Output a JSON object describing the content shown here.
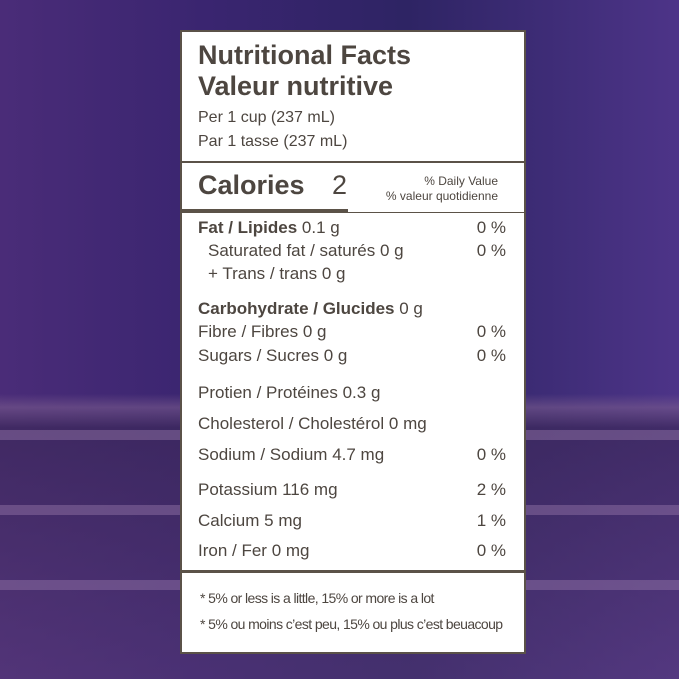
{
  "header": {
    "title": "Nutritional Facts",
    "subtitle": "Valeur nutritive",
    "serving_en": "Per 1 cup (237 mL)",
    "serving_fr": "Par 1 tasse (237 mL)"
  },
  "calories": {
    "label": "Calories",
    "value": "2",
    "daily_value_en": "% Daily Value",
    "daily_value_fr": "% valeur quotidienne"
  },
  "nutrients": [
    {
      "name": "Fat / Lipides",
      "amount": "0.1 g",
      "percent": "0 %"
    },
    {
      "name": "Saturated fat / saturés",
      "amount": "0 g",
      "percent": "0 %"
    },
    {
      "name": "+ Trans / trans",
      "amount": "0 g"
    },
    {
      "name": "Carbohydrate / Glucides",
      "amount": "0 g"
    },
    {
      "name": "Fibre / Fibres",
      "amount": "0 g",
      "percent": "0 %"
    },
    {
      "name": "Sugars / Sucres",
      "amount": "0 g",
      "percent": "0 %"
    },
    {
      "name": "Protien / Protéines",
      "amount": "0.3 g"
    },
    {
      "name": "Cholesterol / Cholestérol",
      "amount": "0 mg"
    },
    {
      "name": "Sodium / Sodium",
      "amount": "4.7 mg",
      "percent": "0 %"
    },
    {
      "name": "Potassium",
      "amount": "116 mg",
      "percent": "2 %"
    },
    {
      "name": "Calcium",
      "amount": "5 mg",
      "percent": "1 %"
    },
    {
      "name": "Iron / Fer",
      "amount": "0 mg",
      "percent": "0 %"
    }
  ],
  "footnotes": [
    "* 5% or less is a little, 15% or more is a lot",
    "* 5% ou moins c’est peu, 15% ou plus c’est beuacoup"
  ]
}
